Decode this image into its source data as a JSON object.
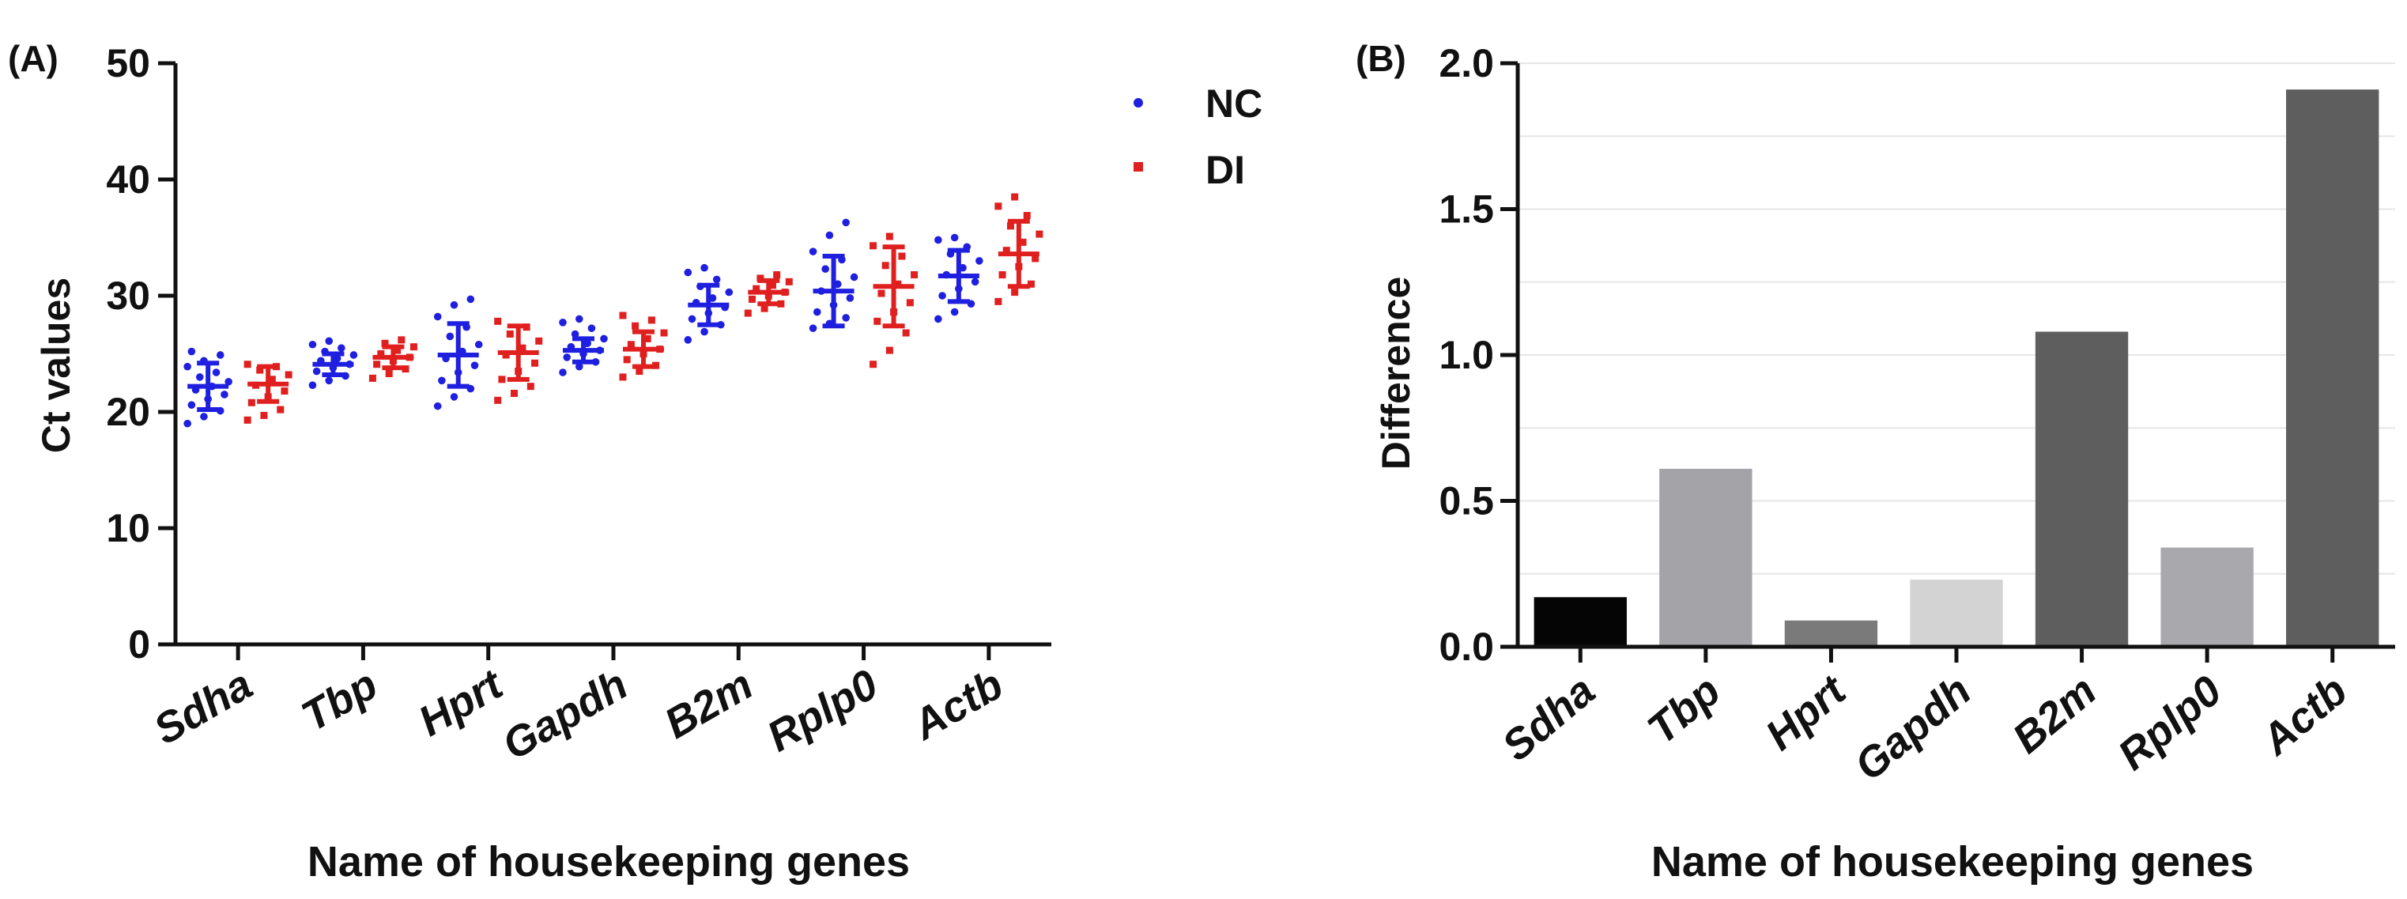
{
  "chart_data": [
    {
      "type": "scatter",
      "panel_label": "(A)",
      "title": "",
      "xlabel": "Name of housekeeping genes",
      "ylabel": "Ct values",
      "ylim": [
        0,
        50
      ],
      "yticks": [
        "0",
        "10",
        "20",
        "30",
        "40",
        "50"
      ],
      "grid": false,
      "legend_position": "top-right",
      "categories": [
        "Sdha",
        "Tbp",
        "Hprt",
        "Gapdh",
        "B2m",
        "Rplp0",
        "Actb"
      ],
      "series": [
        {
          "name": "NC",
          "color": "#1f1fe0",
          "marker": "circle",
          "mean": [
            22.2,
            24.1,
            24.9,
            25.3,
            29.2,
            30.4,
            31.7
          ],
          "sd": [
            2.0,
            0.9,
            2.7,
            1.0,
            1.7,
            3.0,
            2.2
          ],
          "points": [
            [
              19.0,
              19.6,
              20.1,
              20.6,
              21.1,
              21.5,
              21.9,
              22.2,
              22.6,
              23.0,
              23.4,
              23.9,
              24.4,
              24.9,
              25.2
            ],
            [
              22.3,
              22.7,
              23.1,
              23.5,
              23.8,
              24.1,
              24.4,
              24.6,
              24.9,
              25.2,
              25.5,
              25.8,
              26.1
            ],
            [
              20.5,
              21.3,
              22.0,
              22.7,
              23.4,
              24.0,
              24.6,
              25.2,
              25.8,
              26.5,
              27.3,
              28.2,
              29.2,
              29.7
            ],
            [
              23.4,
              23.9,
              24.3,
              24.7,
              25.0,
              25.3,
              25.6,
              25.9,
              26.3,
              26.7,
              27.2,
              27.7,
              28.0
            ],
            [
              26.2,
              26.9,
              27.5,
              28.0,
              28.5,
              29.0,
              29.4,
              29.8,
              30.3,
              30.8,
              31.4,
              32.0,
              32.4
            ],
            [
              27.2,
              27.6,
              28.1,
              28.6,
              29.2,
              29.8,
              30.4,
              31.0,
              31.6,
              32.3,
              33.1,
              33.8,
              35.2,
              36.3
            ],
            [
              28.0,
              28.6,
              29.3,
              30.0,
              30.6,
              31.2,
              31.8,
              32.4,
              33.0,
              33.6,
              34.2,
              34.8,
              35.0
            ]
          ]
        },
        {
          "name": "DI",
          "color": "#e01f1f",
          "marker": "square",
          "mean": [
            22.4,
            24.7,
            25.1,
            25.4,
            30.3,
            30.8,
            33.6
          ],
          "sd": [
            1.5,
            0.9,
            2.3,
            1.5,
            1.0,
            3.4,
            2.8
          ],
          "points": [
            [
              19.3,
              19.7,
              20.2,
              20.8,
              21.3,
              21.8,
              22.3,
              22.8,
              23.2,
              23.6,
              23.9,
              24.1
            ],
            [
              22.9,
              23.3,
              23.7,
              24.1,
              24.4,
              24.7,
              25.0,
              25.3,
              25.6,
              25.9,
              26.2
            ],
            [
              21.0,
              21.6,
              22.2,
              22.8,
              23.5,
              24.2,
              24.9,
              25.5,
              26.1,
              26.7,
              27.3,
              27.8
            ],
            [
              23.0,
              23.5,
              24.0,
              24.5,
              25.0,
              25.4,
              25.8,
              26.3,
              26.8,
              27.4,
              27.9,
              28.3
            ],
            [
              28.5,
              28.9,
              29.3,
              29.7,
              30.0,
              30.3,
              30.6,
              30.9,
              31.2,
              31.5,
              31.8
            ],
            [
              24.1,
              25.3,
              26.8,
              27.8,
              28.6,
              29.4,
              30.2,
              31.0,
              31.8,
              32.6,
              33.4,
              34.3,
              35.1
            ],
            [
              29.5,
              30.3,
              31.0,
              31.8,
              32.5,
              33.2,
              33.9,
              34.6,
              35.3,
              36.0,
              36.9,
              37.7,
              38.5
            ]
          ]
        }
      ]
    },
    {
      "type": "bar",
      "panel_label": "(B)",
      "title": "",
      "xlabel": "Name of housekeeping genes",
      "ylabel": "Difference",
      "ylim": [
        0,
        2.0
      ],
      "yticks": [
        "0.0",
        "0.5",
        "1.0",
        "1.5",
        "2.0"
      ],
      "grid": true,
      "categories": [
        "Sdha",
        "Tbp",
        "Hprt",
        "Gapdh",
        "B2m",
        "Rplp0",
        "Actb"
      ],
      "values": [
        0.17,
        0.61,
        0.09,
        0.23,
        1.08,
        0.34,
        1.91
      ],
      "colors": [
        "#050505",
        "#a3a3a8",
        "#7a7a7a",
        "#d3d3d3",
        "#5e5e5e",
        "#a8a8ad",
        "#5e5e5e"
      ]
    }
  ]
}
